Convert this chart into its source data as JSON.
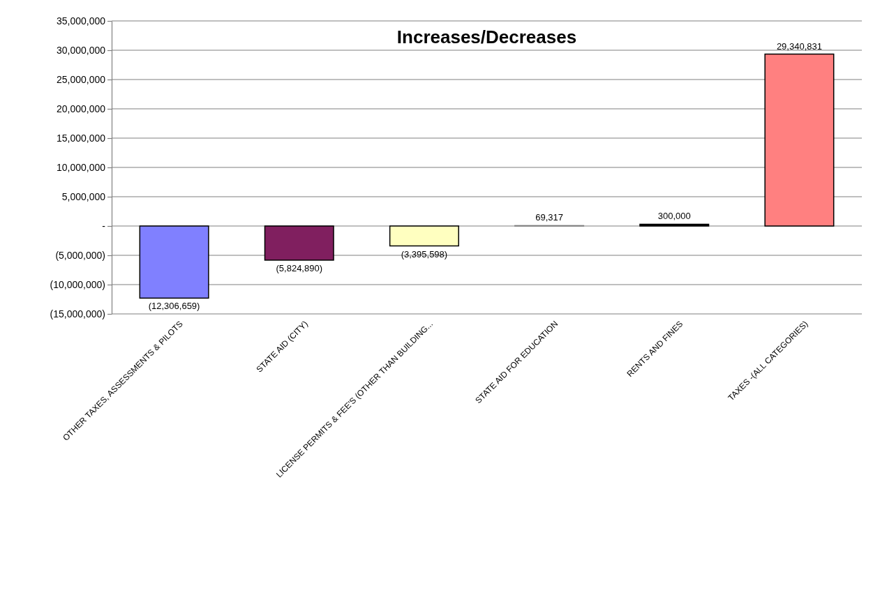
{
  "chart_data": {
    "type": "bar",
    "title": "Increases/Decreases",
    "categories": [
      "OTHER TAXES, ASSESSMENTS & PILOTS",
      "STATE AID (CITY)",
      "LICENSE PERMITS & FEE'S (OTHER THAN BUILDING...",
      "STATE AID FOR EDUCATION",
      "RENTS AND FINES",
      "TAXES -(ALL CATEGORIES)"
    ],
    "values": [
      -12306659,
      -5824890,
      -3395598,
      69317,
      300000,
      29340831
    ],
    "colors": [
      "#8080ff",
      "#801f5f",
      "#ffffc0",
      "#808080",
      "#000000",
      "#ff8080"
    ],
    "value_labels": [
      "(12,306,659)",
      "(5,824,890)",
      "(3,395,598)",
      "69,317",
      "300,000",
      "29,340,831"
    ],
    "ylim": [
      -15000000,
      35000000
    ],
    "yticks": [
      {
        "value": -15000000,
        "label": "(15,000,000)"
      },
      {
        "value": -10000000,
        "label": "(10,000,000)"
      },
      {
        "value": -5000000,
        "label": "(5,000,000)"
      },
      {
        "value": 0,
        "label": "-"
      },
      {
        "value": 5000000,
        "label": "5,000,000"
      },
      {
        "value": 10000000,
        "label": "10,000,000"
      },
      {
        "value": 15000000,
        "label": "15,000,000"
      },
      {
        "value": 20000000,
        "label": "20,000,000"
      },
      {
        "value": 25000000,
        "label": "25,000,000"
      },
      {
        "value": 30000000,
        "label": "30,000,000"
      },
      {
        "value": 35000000,
        "label": "35,000,000"
      }
    ],
    "grid": true
  }
}
